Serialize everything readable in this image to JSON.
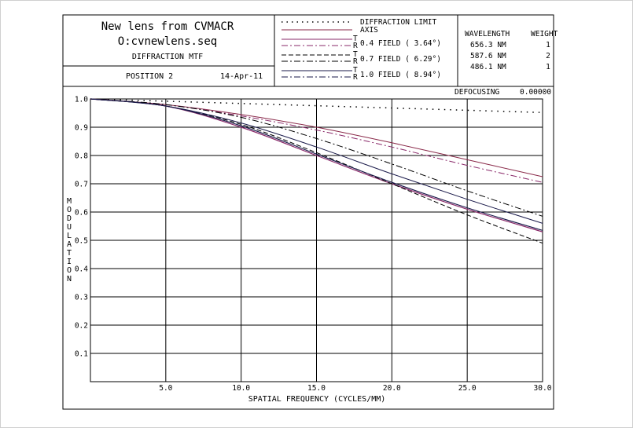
{
  "header": {
    "title_line1": "New lens from CVMACR",
    "title_line2": "O:cvnewlens.seq",
    "subtitle": "DIFFRACTION MTF",
    "position": "POSITION 2",
    "date": "14-Apr-11"
  },
  "legend": {
    "entries": [
      {
        "label": "DIFFRACTION LIMIT",
        "style": "diffraction"
      },
      {
        "label": "AXIS",
        "style": "axis"
      },
      {
        "label": "0.4 FIELD ( 3.64°)",
        "style": "f04"
      },
      {
        "label": "0.7 FIELD ( 6.29°)",
        "style": "f07"
      },
      {
        "label": "1.0 FIELD ( 8.94°)",
        "style": "f10"
      }
    ],
    "t_marker": "T",
    "r_marker": "R"
  },
  "wavelengths": {
    "header_wavelength": "WAVELENGTH",
    "header_weight": "WEIGHT",
    "rows": [
      {
        "wavelength": "656.3 NM",
        "weight": "1"
      },
      {
        "wavelength": "587.6 NM",
        "weight": "2"
      },
      {
        "wavelength": "486.1 NM",
        "weight": "1"
      }
    ]
  },
  "defocusing": {
    "label": "DEFOCUSING",
    "value": "0.00000"
  },
  "colors": {
    "axis_line": "#8a2a4a",
    "field_04": "#8a2a6a",
    "field_07": "#000000",
    "field_10": "#1a1a4a",
    "grid": "#000000"
  },
  "chart_data": {
    "type": "line",
    "xlabel": "SPATIAL FREQUENCY (CYCLES/MM)",
    "ylabel": "MODULATION",
    "xlim": [
      0,
      30
    ],
    "ylim": [
      0,
      1.0
    ],
    "x_ticks": [
      5,
      10,
      15,
      20,
      25,
      30
    ],
    "x_tick_labels": [
      "5.0",
      "10.0",
      "15.0",
      "20.0",
      "25.0",
      "30.0"
    ],
    "y_ticks": [
      0.1,
      0.2,
      0.3,
      0.4,
      0.5,
      0.6,
      0.7,
      0.8,
      0.9,
      1.0
    ],
    "y_tick_labels": [
      "0.1",
      "0.2",
      "0.3",
      "0.4",
      "0.5",
      "0.6",
      "0.7",
      "0.8",
      "0.9",
      "1.0"
    ],
    "grid": true,
    "x": [
      0,
      5,
      10,
      15,
      20,
      25,
      30
    ],
    "series": [
      {
        "name": "DIFFRACTION LIMIT",
        "style": "diffraction",
        "values": [
          1.0,
          0.992,
          0.984,
          0.976,
          0.968,
          0.96,
          0.952
        ]
      },
      {
        "name": "AXIS",
        "style": "axis",
        "values": [
          1.0,
          0.98,
          0.945,
          0.9,
          0.845,
          0.785,
          0.725
        ]
      },
      {
        "name": "0.4 FIELD T",
        "style": "f04_t",
        "values": [
          1.0,
          0.975,
          0.9,
          0.8,
          0.7,
          0.61,
          0.53
        ]
      },
      {
        "name": "0.4 FIELD R",
        "style": "f04_r",
        "values": [
          1.0,
          0.98,
          0.94,
          0.89,
          0.83,
          0.765,
          0.705
        ]
      },
      {
        "name": "0.7 FIELD T",
        "style": "f07_t",
        "values": [
          1.0,
          0.975,
          0.91,
          0.81,
          0.7,
          0.59,
          0.49
        ]
      },
      {
        "name": "0.7 FIELD R",
        "style": "f07_r",
        "values": [
          1.0,
          0.98,
          0.935,
          0.86,
          0.77,
          0.675,
          0.585
        ]
      },
      {
        "name": "1.0 FIELD T",
        "style": "f10_t",
        "values": [
          1.0,
          0.975,
          0.905,
          0.805,
          0.705,
          0.615,
          0.535
        ]
      },
      {
        "name": "1.0 FIELD R",
        "style": "f10_r",
        "values": [
          1.0,
          0.975,
          0.915,
          0.83,
          0.735,
          0.645,
          0.56
        ]
      }
    ]
  }
}
